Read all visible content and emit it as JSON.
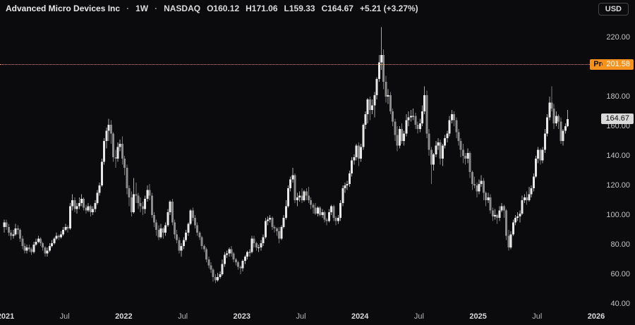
{
  "header": {
    "title": "Advanced Micro Devices Inc",
    "sep": "·",
    "interval": "1W",
    "exchange": "NASDAQ",
    "open": "O160.12",
    "high": "H171.06",
    "low": "L159.33",
    "close": "C164.67",
    "change": "+5.21 (+3.27%)"
  },
  "currency_button": "USD",
  "premarket": {
    "label": "Pre",
    "price_label": "201.58",
    "price": 201.58,
    "color": "#f7921e"
  },
  "last_price": {
    "label": "164.67",
    "price": 164.67,
    "bg": "#d9d9d9"
  },
  "chart_data": {
    "type": "candlestick",
    "title": "Advanced Micro Devices Inc, 1W, NASDAQ",
    "interval": "weekly",
    "background": "#0b0b0d",
    "grid": "off",
    "up_color": "#e8e8e8",
    "down_color": "#8b8b8b",
    "up_wick": "#a8a8a8",
    "down_wick": "#787878",
    "ylim": [
      36,
      232
    ],
    "x_start_year": 2021.0,
    "weeks_per_candle": 1,
    "last_bar": {
      "open": 160.12,
      "high": 171.06,
      "low": 159.33,
      "close": 164.67,
      "change": 5.21,
      "change_pct": 3.27
    },
    "premarket_price": 201.58,
    "y_ticks": [
      {
        "label": "220.00",
        "price": 220
      },
      {
        "label": "180.00",
        "price": 180
      },
      {
        "label": "160.00",
        "price": 160
      },
      {
        "label": "140.00",
        "price": 140
      },
      {
        "label": "120.00",
        "price": 120
      },
      {
        "label": "100.00",
        "price": 100
      },
      {
        "label": "80.00",
        "price": 80
      },
      {
        "label": "60.00",
        "price": 60
      },
      {
        "label": "40.00",
        "price": 40
      }
    ],
    "x_ticks": [
      {
        "label": "2021",
        "t": 2021.0,
        "major": true
      },
      {
        "label": "Jul",
        "t": 2021.5,
        "major": false
      },
      {
        "label": "2022",
        "t": 2022.0,
        "major": true
      },
      {
        "label": "Jul",
        "t": 2022.5,
        "major": false
      },
      {
        "label": "2023",
        "t": 2023.0,
        "major": true
      },
      {
        "label": "Jul",
        "t": 2023.5,
        "major": false
      },
      {
        "label": "2024",
        "t": 2024.0,
        "major": true
      },
      {
        "label": "Jul",
        "t": 2024.5,
        "major": false
      },
      {
        "label": "2025",
        "t": 2025.0,
        "major": true
      },
      {
        "label": "Jul",
        "t": 2025.5,
        "major": false
      },
      {
        "label": "2026",
        "t": 2026.0,
        "major": true
      }
    ],
    "candles": [
      [
        92,
        97,
        88,
        95
      ],
      [
        95,
        97,
        90,
        92
      ],
      [
        92,
        94,
        86,
        88
      ],
      [
        88,
        90,
        83,
        86
      ],
      [
        86,
        90,
        84,
        87
      ],
      [
        87,
        94,
        86,
        91
      ],
      [
        91,
        93,
        87,
        90
      ],
      [
        90,
        91,
        82,
        84
      ],
      [
        84,
        86,
        77,
        79
      ],
      [
        79,
        81,
        74,
        76
      ],
      [
        76,
        80,
        74,
        78
      ],
      [
        78,
        80,
        75,
        77
      ],
      [
        77,
        78,
        73,
        75
      ],
      [
        75,
        82,
        74,
        80
      ],
      [
        80,
        84,
        79,
        82
      ],
      [
        82,
        86,
        81,
        84
      ],
      [
        84,
        85,
        79,
        81
      ],
      [
        81,
        82,
        76,
        78
      ],
      [
        78,
        79,
        72,
        74
      ],
      [
        74,
        78,
        72,
        76
      ],
      [
        76,
        81,
        75,
        79
      ],
      [
        79,
        83,
        78,
        81
      ],
      [
        81,
        85,
        80,
        84
      ],
      [
        84,
        88,
        83,
        86
      ],
      [
        86,
        87,
        83,
        85
      ],
      [
        85,
        89,
        84,
        87
      ],
      [
        87,
        92,
        86,
        90
      ],
      [
        90,
        94,
        89,
        92
      ],
      [
        92,
        93,
        88,
        91
      ],
      [
        91,
        108,
        90,
        106
      ],
      [
        106,
        114,
        103,
        110
      ],
      [
        110,
        112,
        102,
        104
      ],
      [
        104,
        108,
        101,
        106
      ],
      [
        106,
        112,
        104,
        108
      ],
      [
        108,
        114,
        106,
        111
      ],
      [
        111,
        112,
        103,
        105
      ],
      [
        105,
        107,
        101,
        103
      ],
      [
        103,
        108,
        102,
        106
      ],
      [
        106,
        107,
        99,
        102
      ],
      [
        102,
        106,
        100,
        104
      ],
      [
        104,
        110,
        102,
        108
      ],
      [
        108,
        117,
        107,
        115
      ],
      [
        115,
        122,
        113,
        120
      ],
      [
        120,
        138,
        119,
        136
      ],
      [
        136,
        152,
        134,
        150
      ],
      [
        150,
        159,
        145,
        157
      ],
      [
        157,
        165,
        150,
        161
      ],
      [
        161,
        164,
        148,
        155
      ],
      [
        155,
        156,
        136,
        139
      ],
      [
        139,
        144,
        132,
        138
      ],
      [
        138,
        149,
        136,
        146
      ],
      [
        146,
        151,
        143,
        148
      ],
      [
        148,
        153,
        134,
        138
      ],
      [
        138,
        140,
        127,
        132
      ],
      [
        132,
        134,
        114,
        118
      ],
      [
        118,
        120,
        106,
        112
      ],
      [
        112,
        116,
        99,
        102
      ],
      [
        102,
        125,
        101,
        114
      ],
      [
        114,
        122,
        108,
        113
      ],
      [
        113,
        115,
        104,
        108
      ],
      [
        108,
        112,
        102,
        106
      ],
      [
        106,
        109,
        100,
        104
      ],
      [
        104,
        113,
        101,
        111
      ],
      [
        111,
        120,
        109,
        117
      ],
      [
        117,
        121,
        110,
        113
      ],
      [
        113,
        115,
        98,
        100
      ],
      [
        100,
        102,
        92,
        95
      ],
      [
        95,
        97,
        86,
        90
      ],
      [
        90,
        93,
        83,
        85
      ],
      [
        85,
        94,
        84,
        91
      ],
      [
        91,
        92,
        84,
        88
      ],
      [
        88,
        95,
        86,
        93
      ],
      [
        93,
        104,
        92,
        102
      ],
      [
        102,
        110,
        100,
        109
      ],
      [
        109,
        111,
        93,
        95
      ],
      [
        95,
        97,
        84,
        87
      ],
      [
        87,
        90,
        81,
        83
      ],
      [
        83,
        85,
        74,
        76
      ],
      [
        76,
        81,
        72,
        79
      ],
      [
        79,
        85,
        77,
        83
      ],
      [
        83,
        90,
        82,
        88
      ],
      [
        88,
        95,
        86,
        94
      ],
      [
        94,
        104,
        93,
        103
      ],
      [
        103,
        105,
        96,
        98
      ],
      [
        98,
        100,
        91,
        93
      ],
      [
        93,
        95,
        86,
        88
      ],
      [
        88,
        89,
        83,
        85
      ],
      [
        85,
        86,
        77,
        79
      ],
      [
        79,
        80,
        75,
        77
      ],
      [
        77,
        78,
        68,
        70
      ],
      [
        70,
        72,
        64,
        66
      ],
      [
        66,
        68,
        61,
        63
      ],
      [
        63,
        64,
        55,
        58
      ],
      [
        58,
        60,
        54,
        56
      ],
      [
        56,
        61,
        55,
        58
      ],
      [
        58,
        62,
        57,
        60
      ],
      [
        60,
        70,
        59,
        67
      ],
      [
        67,
        75,
        65,
        73
      ],
      [
        73,
        76,
        71,
        74
      ],
      [
        74,
        78,
        72,
        77
      ],
      [
        77,
        79,
        72,
        74
      ],
      [
        74,
        75,
        68,
        70
      ],
      [
        70,
        71,
        66,
        68
      ],
      [
        68,
        69,
        63,
        65
      ],
      [
        65,
        66,
        60,
        64
      ],
      [
        64,
        70,
        62,
        69
      ],
      [
        69,
        73,
        67,
        72
      ],
      [
        72,
        76,
        70,
        75
      ],
      [
        75,
        77,
        72,
        75
      ],
      [
        75,
        86,
        74,
        84
      ],
      [
        84,
        86,
        78,
        81
      ],
      [
        81,
        82,
        76,
        78
      ],
      [
        78,
        80,
        75,
        78
      ],
      [
        78,
        83,
        76,
        81
      ],
      [
        81,
        87,
        79,
        85
      ],
      [
        85,
        98,
        84,
        96
      ],
      [
        96,
        99,
        93,
        97
      ],
      [
        97,
        100,
        95,
        98
      ],
      [
        98,
        99,
        90,
        92
      ],
      [
        92,
        93,
        88,
        91
      ],
      [
        91,
        92,
        86,
        89
      ],
      [
        89,
        92,
        81,
        84
      ],
      [
        84,
        93,
        83,
        92
      ],
      [
        92,
        100,
        91,
        98
      ],
      [
        98,
        110,
        97,
        106
      ],
      [
        106,
        120,
        105,
        118
      ],
      [
        118,
        126,
        116,
        124
      ],
      [
        124,
        132,
        122,
        127
      ],
      [
        127,
        128,
        108,
        110
      ],
      [
        110,
        115,
        106,
        112
      ],
      [
        112,
        116,
        109,
        113
      ],
      [
        113,
        118,
        108,
        110
      ],
      [
        110,
        117,
        109,
        116
      ],
      [
        116,
        118,
        110,
        113
      ],
      [
        113,
        119,
        108,
        110
      ],
      [
        110,
        112,
        104,
        107
      ],
      [
        107,
        108,
        101,
        105
      ],
      [
        105,
        108,
        100,
        101
      ],
      [
        101,
        106,
        99,
        105
      ],
      [
        105,
        106,
        99,
        100
      ],
      [
        100,
        104,
        98,
        102
      ],
      [
        102,
        103,
        95,
        97
      ],
      [
        97,
        98,
        93,
        96
      ],
      [
        96,
        104,
        95,
        102
      ],
      [
        102,
        107,
        100,
        106
      ],
      [
        106,
        107,
        96,
        98
      ],
      [
        98,
        99,
        93,
        96
      ],
      [
        96,
        100,
        94,
        98
      ],
      [
        98,
        110,
        96,
        108
      ],
      [
        108,
        120,
        106,
        118
      ],
      [
        118,
        122,
        115,
        120
      ],
      [
        120,
        123,
        117,
        121
      ],
      [
        121,
        130,
        119,
        128
      ],
      [
        128,
        139,
        126,
        137
      ],
      [
        137,
        141,
        134,
        139
      ],
      [
        139,
        148,
        137,
        147
      ],
      [
        147,
        149,
        133,
        138
      ],
      [
        138,
        148,
        136,
        146
      ],
      [
        146,
        162,
        144,
        161
      ],
      [
        161,
        170,
        158,
        168
      ],
      [
        168,
        179,
        162,
        178
      ],
      [
        178,
        180,
        164,
        171
      ],
      [
        171,
        178,
        168,
        174
      ],
      [
        174,
        183,
        166,
        181
      ],
      [
        181,
        193,
        178,
        192
      ],
      [
        192,
        208,
        190,
        203
      ],
      [
        203,
        227,
        198,
        208
      ],
      [
        208,
        212,
        185,
        190
      ],
      [
        190,
        194,
        176,
        180
      ],
      [
        180,
        185,
        175,
        181
      ],
      [
        181,
        183,
        168,
        170
      ],
      [
        170,
        172,
        160,
        163
      ],
      [
        163,
        165,
        150,
        154
      ],
      [
        154,
        160,
        143,
        147
      ],
      [
        147,
        160,
        145,
        158
      ],
      [
        158,
        162,
        148,
        150
      ],
      [
        150,
        157,
        147,
        155
      ],
      [
        155,
        168,
        153,
        164
      ],
      [
        164,
        170,
        160,
        166
      ],
      [
        166,
        171,
        163,
        167
      ],
      [
        167,
        172,
        164,
        167
      ],
      [
        167,
        169,
        158,
        161
      ],
      [
        161,
        163,
        155,
        158
      ],
      [
        158,
        165,
        156,
        162
      ],
      [
        162,
        174,
        160,
        170
      ],
      [
        170,
        187,
        168,
        181
      ],
      [
        181,
        184,
        152,
        155
      ],
      [
        155,
        158,
        140,
        144
      ],
      [
        144,
        146,
        121,
        134
      ],
      [
        134,
        142,
        130,
        141
      ],
      [
        141,
        150,
        139,
        147
      ],
      [
        147,
        152,
        144,
        149
      ],
      [
        149,
        151,
        134,
        138
      ],
      [
        138,
        148,
        133,
        147
      ],
      [
        147,
        154,
        145,
        152
      ],
      [
        152,
        157,
        149,
        155
      ],
      [
        155,
        167,
        153,
        164
      ],
      [
        164,
        171,
        162,
        168
      ],
      [
        168,
        170,
        160,
        164
      ],
      [
        164,
        166,
        152,
        156
      ],
      [
        156,
        158,
        147,
        150
      ],
      [
        150,
        152,
        139,
        144
      ],
      [
        144,
        148,
        135,
        140
      ],
      [
        140,
        142,
        134,
        138
      ],
      [
        138,
        145,
        135,
        142
      ],
      [
        142,
        143,
        125,
        129
      ],
      [
        129,
        130,
        117,
        121
      ],
      [
        121,
        126,
        118,
        120
      ],
      [
        120,
        122,
        112,
        116
      ],
      [
        116,
        124,
        114,
        121
      ],
      [
        121,
        127,
        119,
        123
      ],
      [
        123,
        125,
        110,
        115
      ],
      [
        115,
        116,
        106,
        110
      ],
      [
        110,
        115,
        108,
        112
      ],
      [
        112,
        114,
        101,
        103
      ],
      [
        103,
        105,
        96,
        99
      ],
      [
        99,
        104,
        97,
        100
      ],
      [
        100,
        101,
        94,
        98
      ],
      [
        98,
        106,
        96,
        103
      ],
      [
        103,
        108,
        102,
        106
      ],
      [
        106,
        107,
        98,
        103
      ],
      [
        103,
        104,
        83,
        86
      ],
      [
        86,
        90,
        76,
        78
      ],
      [
        78,
        89,
        77,
        87
      ],
      [
        87,
        97,
        86,
        95
      ],
      [
        95,
        100,
        93,
        98
      ],
      [
        98,
        102,
        96,
        99
      ],
      [
        99,
        103,
        95,
        101
      ],
      [
        101,
        113,
        100,
        110
      ],
      [
        110,
        114,
        108,
        112
      ],
      [
        112,
        116,
        107,
        110
      ],
      [
        110,
        119,
        109,
        114
      ],
      [
        114,
        120,
        112,
        118
      ],
      [
        118,
        128,
        116,
        126
      ],
      [
        126,
        140,
        125,
        138
      ],
      [
        138,
        146,
        135,
        144
      ],
      [
        144,
        145,
        134,
        137
      ],
      [
        137,
        146,
        135,
        144
      ],
      [
        144,
        158,
        142,
        155
      ],
      [
        155,
        168,
        153,
        166
      ],
      [
        166,
        180,
        164,
        176
      ],
      [
        176,
        187,
        170,
        172
      ],
      [
        172,
        175,
        158,
        162
      ],
      [
        162,
        170,
        160,
        167
      ],
      [
        167,
        168,
        158,
        163
      ],
      [
        163,
        166,
        148,
        150
      ],
      [
        150,
        158,
        147,
        157
      ],
      [
        157,
        162,
        155,
        160
      ],
      [
        160,
        171.06,
        159.33,
        164.67
      ]
    ]
  }
}
